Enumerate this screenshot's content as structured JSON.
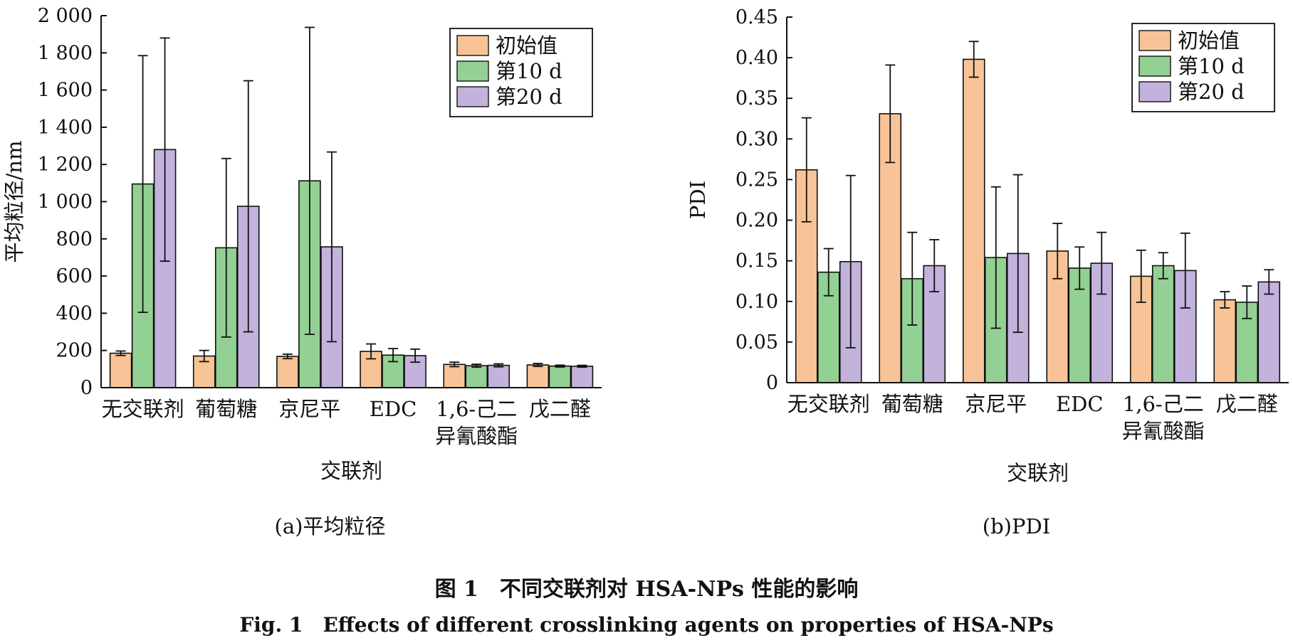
{
  "figure": {
    "caption_cn": "图 1　不同交联剂对 HSA-NPs 性能的影响",
    "caption_en": "Fig. 1　Effects of different crosslinking agents on properties of HSA-NPs"
  },
  "colors": {
    "series": [
      "#f8c497",
      "#93d093",
      "#c2b2dc"
    ],
    "stroke": "#111111"
  },
  "chart_data": [
    {
      "type": "bar",
      "panel_label": "(a)平均粒径",
      "xlabel": "交联剂",
      "ylabel": "平均粒径/nm",
      "ylim": [
        0,
        2000
      ],
      "yticks": [
        0,
        200,
        400,
        600,
        800,
        1000,
        1200,
        1400,
        1600,
        1800,
        2000
      ],
      "ytick_labels": [
        "0",
        "200",
        "400",
        "600",
        "800",
        "1 000",
        "1 200",
        "1 400",
        "1 600",
        "1 800",
        "2 000"
      ],
      "categories": [
        "无交联剂",
        "葡萄糖",
        "京尼平",
        "EDC",
        "1,6-己二异氰酸酯",
        "戊二醛"
      ],
      "category_lines": [
        [
          "无交联剂"
        ],
        [
          "葡萄糖"
        ],
        [
          "京尼平"
        ],
        [
          "EDC"
        ],
        [
          "1,6-己二",
          "异氰酸酯"
        ],
        [
          "戊二醛"
        ]
      ],
      "legend": "top-right",
      "grid": false,
      "series": [
        {
          "name": "初始值",
          "values": [
            185,
            170,
            168,
            195,
            125,
            122
          ],
          "errors": [
            12,
            30,
            12,
            40,
            12,
            8
          ]
        },
        {
          "name": "第10 d",
          "values": [
            1095,
            752,
            1112,
            175,
            118,
            116
          ],
          "errors": [
            690,
            480,
            825,
            35,
            8,
            5
          ]
        },
        {
          "name": "第20 d",
          "values": [
            1280,
            975,
            757,
            172,
            120,
            115
          ],
          "errors": [
            600,
            675,
            510,
            35,
            8,
            5
          ]
        }
      ]
    },
    {
      "type": "bar",
      "panel_label": "(b)PDI",
      "xlabel": "交联剂",
      "ylabel": "PDI",
      "ylim": [
        0,
        0.45
      ],
      "yticks": [
        0,
        0.05,
        0.1,
        0.15,
        0.2,
        0.25,
        0.3,
        0.35,
        0.4,
        0.45
      ],
      "ytick_labels": [
        "0",
        "0.05",
        "0.10",
        "0.15",
        "0.20",
        "0.25",
        "0.30",
        "0.35",
        "0.40",
        "0.45"
      ],
      "categories": [
        "无交联剂",
        "葡萄糖",
        "京尼平",
        "EDC",
        "1,6-己二异氰酸酯",
        "戊二醛"
      ],
      "category_lines": [
        [
          "无交联剂"
        ],
        [
          "葡萄糖"
        ],
        [
          "京尼平"
        ],
        [
          "EDC"
        ],
        [
          "1,6-己二",
          "异氰酸酯"
        ],
        [
          "戊二醛"
        ]
      ],
      "legend": "top-right",
      "grid": false,
      "series": [
        {
          "name": "初始值",
          "values": [
            0.262,
            0.331,
            0.398,
            0.162,
            0.131,
            0.102
          ],
          "errors": [
            0.064,
            0.06,
            0.022,
            0.034,
            0.032,
            0.01
          ]
        },
        {
          "name": "第10 d",
          "values": [
            0.136,
            0.128,
            0.154,
            0.141,
            0.144,
            0.099
          ],
          "errors": [
            0.029,
            0.057,
            0.087,
            0.026,
            0.016,
            0.02
          ]
        },
        {
          "name": "第20 d",
          "values": [
            0.149,
            0.144,
            0.159,
            0.147,
            0.138,
            0.124
          ],
          "errors": [
            0.106,
            0.032,
            0.097,
            0.038,
            0.046,
            0.015
          ]
        }
      ]
    }
  ]
}
